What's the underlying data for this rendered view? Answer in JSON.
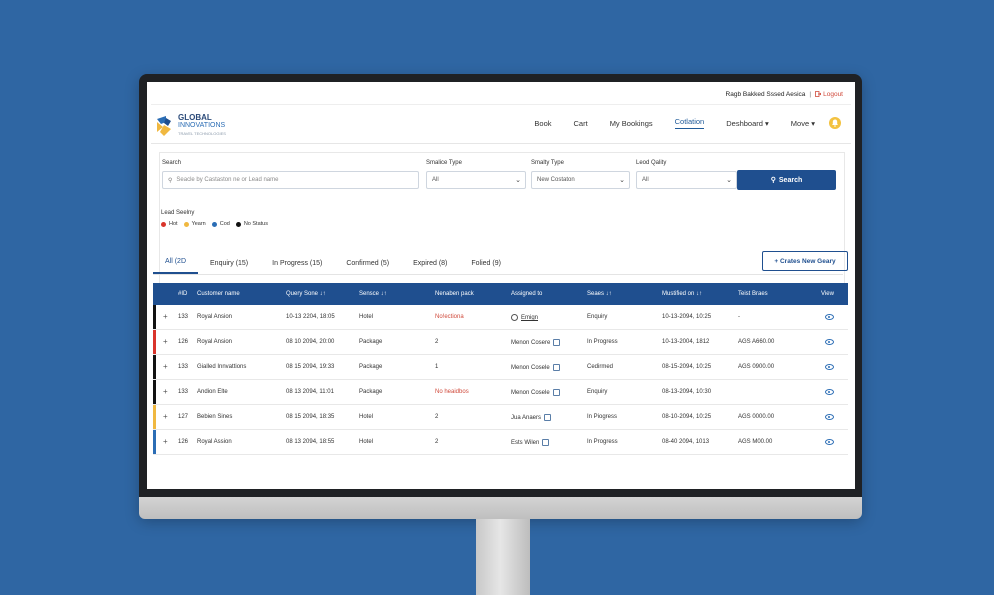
{
  "topbar": {
    "user": "Ragb Bakked Sssed Aesica",
    "logout": "Logout"
  },
  "logo": {
    "line1": "GLOBAL",
    "line2": "INNOVATIONS",
    "line3": "TRAVEL TECHNOLOGIES"
  },
  "nav": {
    "items": [
      {
        "label": "Book"
      },
      {
        "label": "Cart"
      },
      {
        "label": "My Bookings"
      },
      {
        "label": "Cotlation"
      },
      {
        "label": "Deshboard"
      },
      {
        "label": "Move"
      }
    ]
  },
  "filters": {
    "search": {
      "label": "Search",
      "placeholder": "Seacle by Castaston ne or Lead name"
    },
    "service_type": {
      "label": "Smalice Type",
      "value": "All"
    },
    "enquiry_type": {
      "label": "Smalty Type",
      "value": "New Costaton"
    },
    "lead_quality": {
      "label": "Leod Qality",
      "value": "All"
    },
    "search_button": "Search"
  },
  "legend": {
    "title": "Lead Seelny",
    "items": [
      {
        "label": "Hot",
        "color": "#d9342b"
      },
      {
        "label": "Yearn",
        "color": "#f0b840"
      },
      {
        "label": "Cod",
        "color": "#2b6db5"
      },
      {
        "label": "No Status",
        "color": "#111111"
      }
    ]
  },
  "tabs": [
    {
      "label": "All (2D"
    },
    {
      "label": "Enquiry (15)"
    },
    {
      "label": "In Progress (15)"
    },
    {
      "label": "Confirmed (5)"
    },
    {
      "label": "Expired (8)"
    },
    {
      "label": "Folied (9)"
    }
  ],
  "create_button": "+ Crates New Geary",
  "table": {
    "headers": {
      "id": "#ID",
      "customer": "Customer name",
      "query_date": "Query Sone ↓↑",
      "service": "Sensce ↓↑",
      "members": "Nenaben pack",
      "assigned": "Assigned to",
      "status": "Seaes ↓↑",
      "modified": "Mustified on ↓↑",
      "total": "Teist Braes",
      "view": "View"
    },
    "rows": [
      {
        "id": "133",
        "customer": "Royal Ansion",
        "date": "10-13 2204, 18:05",
        "service": "Hotel",
        "members": "No!ectiona",
        "assigned": "Emign",
        "status": "Enquiry",
        "modified": "10-13-2094, 10:25",
        "total": "-",
        "color": "#111111"
      },
      {
        "id": "126",
        "customer": "Royal Ansion",
        "date": "08 10 2094, 20:00",
        "service": "Package",
        "members": "2",
        "assigned": "Menon Cosere",
        "status": "In Progress",
        "modified": "10-13-2004, 1812",
        "total": "AGS A660.00",
        "color": "#d9342b"
      },
      {
        "id": "133",
        "customer": "Gialled Innvattions",
        "date": "08 15 2094, 19:33",
        "service": "Package",
        "members": "1",
        "assigned": "Menon Cosele",
        "status": "Cedirmed",
        "modified": "08-15-2094, 10:25",
        "total": "AGS 0900.00",
        "color": "#111111"
      },
      {
        "id": "133",
        "customer": "Andion Elte",
        "date": "08 13 2094, 11:01",
        "service": "Package",
        "members": "No heaidbos",
        "assigned": "Menon Cosele",
        "status": "Enquiry",
        "modified": "08-13-2094, 10:30",
        "total": "",
        "color": "#111111"
      },
      {
        "id": "127",
        "customer": "Bebien Sines",
        "date": "08 15 2094, 18:35",
        "service": "Hotel",
        "members": "2",
        "assigned": "Jua Anaers",
        "status": "In Piogress",
        "modified": "08-10-2094, 10:25",
        "total": "AGS 0000.00",
        "color": "#f0b840"
      },
      {
        "id": "126",
        "customer": "Royal Assion",
        "date": "08 13 2094, 18:55",
        "service": "Hotel",
        "members": "2",
        "assigned": "Ests Wilen",
        "status": "In Progress",
        "modified": "08-40 2094, 1013",
        "total": "AGS M00.00",
        "color": "#2b6db5"
      }
    ]
  }
}
